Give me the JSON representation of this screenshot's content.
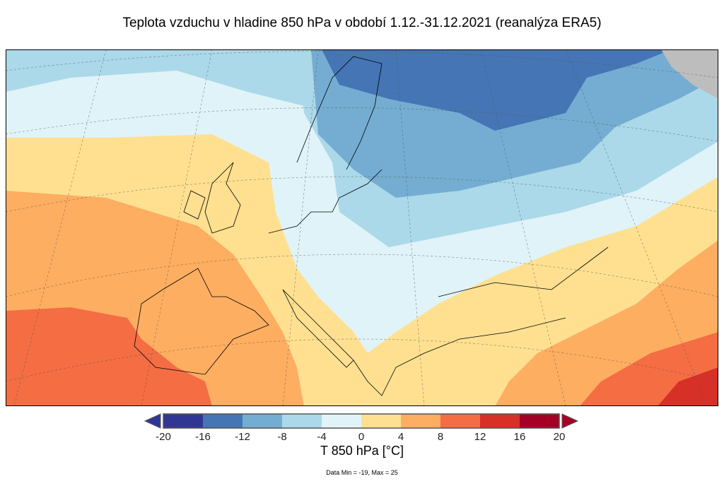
{
  "title": "Teplota vzduchu v hladine 850 hPa v období 1.12.-31.12.2021 (reanalýza ERA5)",
  "colorbar": {
    "label": "T 850 hPa [°C]",
    "ticks": [
      "-20",
      "-16",
      "-12",
      "-8",
      "-4",
      "0",
      "4",
      "8",
      "12",
      "16",
      "20"
    ],
    "colors": [
      "#313695",
      "#4575b4",
      "#74add1",
      "#abd9e9",
      "#e0f3f8",
      "#fee090",
      "#fdae61",
      "#f46d43",
      "#d73027",
      "#a50026"
    ],
    "extend_low_color": "#313695",
    "extend_high_color": "#a50026"
  },
  "data_range": "Data Min = -19, Max = 25",
  "no_data_color": "#bdbdbd"
}
